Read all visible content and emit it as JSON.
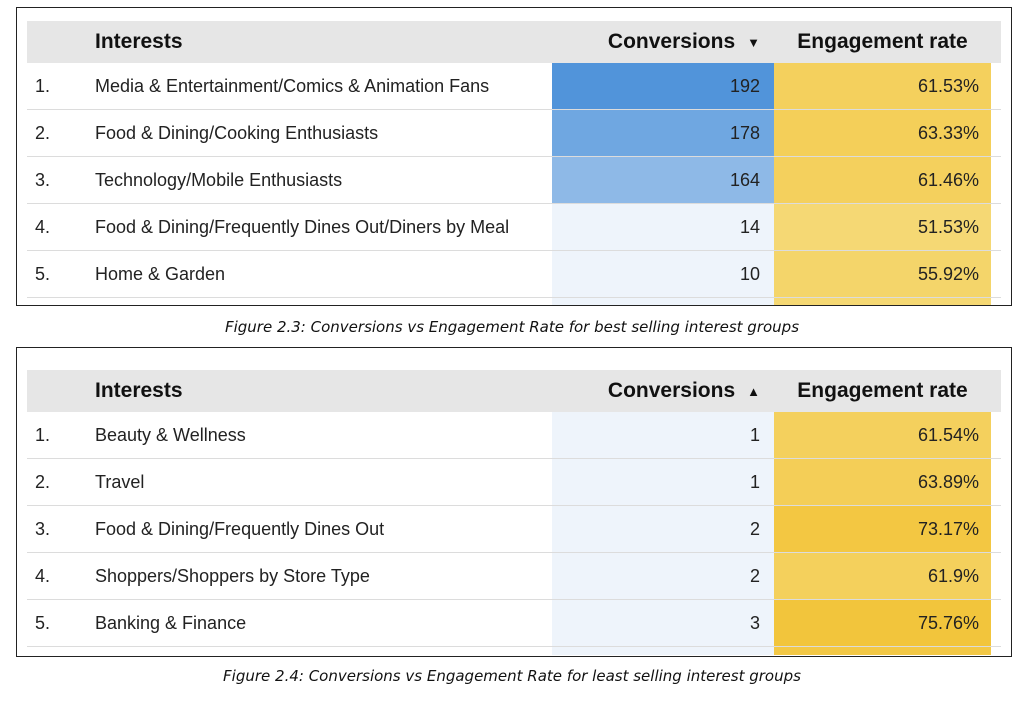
{
  "figure1": {
    "headers": {
      "idx": "",
      "interests": "Interests",
      "conversions": "Conversions",
      "engagement": "Engagement rate"
    },
    "sort_icon": "sort-descending-icon",
    "sort_glyph": "▼",
    "rows": [
      {
        "idx": "1.",
        "interest": "Media & Entertainment/Comics & Animation Fans",
        "conversions": "192",
        "engagement": "61.53%"
      },
      {
        "idx": "2.",
        "interest": "Food & Dining/Cooking Enthusiasts",
        "conversions": "178",
        "engagement": "63.33%"
      },
      {
        "idx": "3.",
        "interest": "Technology/Mobile Enthusiasts",
        "conversions": "164",
        "engagement": "61.46%"
      },
      {
        "idx": "4.",
        "interest": "Food & Dining/Frequently Dines Out/Diners by Meal",
        "conversions": "14",
        "engagement": "51.53%"
      },
      {
        "idx": "5.",
        "interest": "Home & Garden",
        "conversions": "10",
        "engagement": "55.92%"
      }
    ],
    "caption": "Figure 2.3: Conversions vs  Engagement Rate for best selling interest groups"
  },
  "figure2": {
    "headers": {
      "idx": "",
      "interests": "Interests",
      "conversions": "Conversions",
      "engagement": "Engagement rate"
    },
    "sort_icon": "sort-ascending-icon",
    "sort_glyph": "▲",
    "rows": [
      {
        "idx": "1.",
        "interest": "Beauty & Wellness",
        "conversions": "1",
        "engagement": "61.54%"
      },
      {
        "idx": "2.",
        "interest": "Travel",
        "conversions": "1",
        "engagement": "63.89%"
      },
      {
        "idx": "3.",
        "interest": "Food & Dining/Frequently Dines Out",
        "conversions": "2",
        "engagement": "73.17%"
      },
      {
        "idx": "4.",
        "interest": "Shoppers/Shoppers by Store Type",
        "conversions": "2",
        "engagement": "61.9%"
      },
      {
        "idx": "5.",
        "interest": "Banking & Finance",
        "conversions": "3",
        "engagement": "75.76%"
      }
    ],
    "caption": "Figure 2.4: Conversions vs  Engagement Rate for least selling interest groups"
  },
  "colors": {
    "conv_high": "#4a90d9",
    "conv_low": "#eef4fb",
    "eng_high": "#f2c232",
    "eng_low": "#f6e18f",
    "header_bg": "#e6e6e6"
  }
}
